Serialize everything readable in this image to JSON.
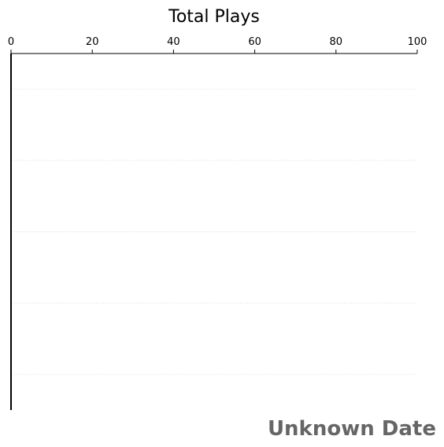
{
  "chart_data": {
    "type": "bar",
    "orientation": "horizontal",
    "title": "Total Plays",
    "xlabel": "",
    "ylabel": "",
    "xlim": [
      0,
      100
    ],
    "x_ticks": [
      "0",
      "20",
      "40",
      "60",
      "80",
      "100"
    ],
    "x_axis_position": "top",
    "grid": "dotted-horizontal",
    "categories": [],
    "values": [],
    "date_label": "Unknown Date",
    "colors": {
      "gridline": "#dddddd",
      "axis": "#000000",
      "date_label": "#666666"
    }
  }
}
